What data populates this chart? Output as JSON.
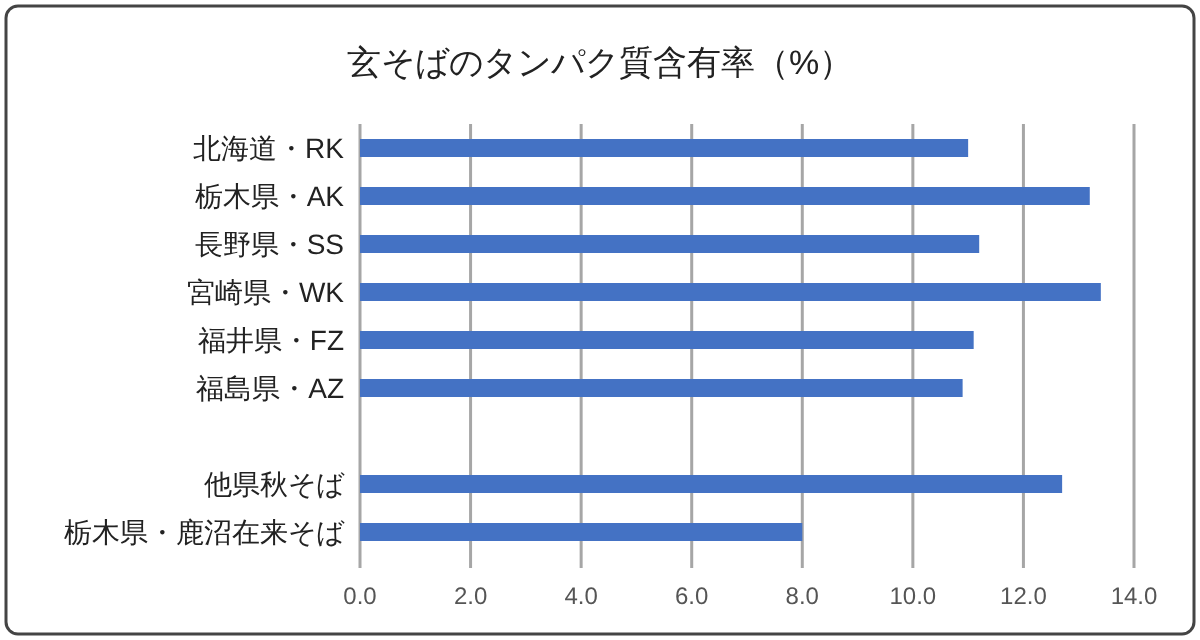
{
  "chart_data": {
    "type": "bar",
    "orientation": "horizontal",
    "title": "玄そばのタンパク質含有率（%）",
    "categories": [
      "北海道・RK",
      "栃木県・AK",
      "長野県・SS",
      "宮崎県・WK",
      "福井県・FZ",
      "福島県・AZ",
      null,
      "他県秋そば",
      "栃木県・鹿沼在来そば"
    ],
    "values": [
      11.0,
      13.2,
      11.2,
      13.4,
      11.1,
      10.9,
      null,
      12.7,
      8.0
    ],
    "color": "#4472c4",
    "xlim": [
      0,
      14.0
    ],
    "xticks": [
      {
        "value": 0,
        "label": "0.0"
      },
      {
        "value": 2,
        "label": "2.0"
      },
      {
        "value": 4,
        "label": "4.0"
      },
      {
        "value": 6,
        "label": "6.0"
      },
      {
        "value": 8,
        "label": "8.0"
      },
      {
        "value": 10,
        "label": "10.0"
      },
      {
        "value": 12,
        "label": "12.0"
      },
      {
        "value": 14,
        "label": "14.0"
      }
    ],
    "grid": "x"
  }
}
